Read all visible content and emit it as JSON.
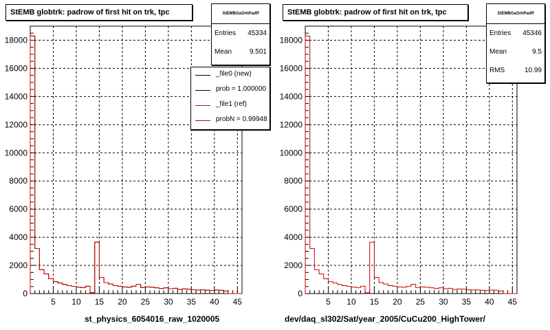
{
  "chart_data": [
    {
      "type": "bar",
      "title": "StEMB globtrk: padrow of first hit on trk, tpc",
      "xlabel": "st_physics_6054016_raw_1020005",
      "ylabel": "",
      "xlim": [
        0,
        46
      ],
      "ylim": [
        0,
        19000
      ],
      "x_ticks": [
        5,
        10,
        15,
        20,
        25,
        30,
        35,
        40,
        45
      ],
      "y_ticks": [
        2000,
        4000,
        6000,
        8000,
        10000,
        12000,
        14000,
        16000,
        18000
      ],
      "grid": true,
      "bins": [
        0,
        1,
        2,
        3,
        4,
        5,
        6,
        7,
        8,
        9,
        10,
        11,
        12,
        13,
        14,
        15,
        16,
        17,
        18,
        19,
        20,
        21,
        22,
        23,
        24,
        25,
        26,
        27,
        28,
        29,
        30,
        31,
        32,
        33,
        34,
        35,
        36,
        37,
        38,
        39,
        40,
        41,
        42,
        43,
        44,
        45
      ],
      "series": [
        {
          "name": "_file0 (new)",
          "color": "#000000",
          "values": [
            18300,
            3200,
            1700,
            1400,
            1050,
            850,
            750,
            650,
            560,
            510,
            460,
            420,
            520,
            60,
            3650,
            1150,
            780,
            680,
            560,
            520,
            470,
            450,
            520,
            660,
            430,
            470,
            450,
            410,
            360,
            410,
            340,
            370,
            290,
            330,
            310,
            270,
            250,
            260,
            230,
            220,
            250,
            230,
            180,
            0,
            0,
            0
          ]
        },
        {
          "name": "_file1 (ref)",
          "color": "#cc0000",
          "values": [
            18300,
            3200,
            1700,
            1400,
            1050,
            850,
            750,
            650,
            560,
            510,
            460,
            420,
            520,
            60,
            3650,
            1150,
            780,
            680,
            560,
            520,
            470,
            450,
            520,
            660,
            430,
            470,
            450,
            410,
            360,
            410,
            340,
            370,
            290,
            330,
            310,
            270,
            250,
            260,
            230,
            220,
            250,
            230,
            180,
            0,
            0,
            0
          ]
        }
      ],
      "stats": {
        "header": "StEMBGaOrhPadff",
        "entries_label": "Entries",
        "entries": "45334",
        "mean_label": "Mean",
        "mean": "9.501"
      },
      "legend": {
        "placement": "top-right",
        "items": [
          {
            "label": "_file0 (new)",
            "color": "#000000"
          },
          {
            "label": "prob = 1.000000",
            "color": "#000000"
          },
          {
            "label": "_file1 (ref)",
            "color": "#cc0000"
          },
          {
            "label": "probN = 0.99948",
            "color": "#cc0000"
          }
        ]
      }
    },
    {
      "type": "bar",
      "title": "StEMB globtrk: padrow of first hit on trk, tpc",
      "xlabel": "dev/daq_sl302/Sat/year_2005/CuCu200_HighTower/",
      "ylabel": "",
      "xlim": [
        0,
        46
      ],
      "ylim": [
        0,
        19000
      ],
      "x_ticks": [
        5,
        10,
        15,
        20,
        25,
        30,
        35,
        40,
        45
      ],
      "y_ticks": [
        2000,
        4000,
        6000,
        8000,
        10000,
        12000,
        14000,
        16000,
        18000
      ],
      "grid": true,
      "bins": [
        0,
        1,
        2,
        3,
        4,
        5,
        6,
        7,
        8,
        9,
        10,
        11,
        12,
        13,
        14,
        15,
        16,
        17,
        18,
        19,
        20,
        21,
        22,
        23,
        24,
        25,
        26,
        27,
        28,
        29,
        30,
        31,
        32,
        33,
        34,
        35,
        36,
        37,
        38,
        39,
        40,
        41,
        42,
        43,
        44,
        45
      ],
      "series": [
        {
          "name": "",
          "color": "#cc0000",
          "values": [
            18300,
            3200,
            1700,
            1400,
            1050,
            850,
            750,
            650,
            560,
            510,
            460,
            420,
            520,
            60,
            3650,
            1150,
            780,
            680,
            560,
            520,
            470,
            450,
            520,
            660,
            430,
            470,
            450,
            410,
            360,
            410,
            340,
            370,
            290,
            330,
            310,
            270,
            250,
            260,
            230,
            220,
            250,
            230,
            180,
            0,
            0,
            0
          ]
        }
      ],
      "stats": {
        "header": "StEMBGaOrhPadff",
        "entries_label": "Entries",
        "entries": "45346",
        "mean_label": "Mean",
        "mean": "9.5",
        "rms_label": "RMS",
        "rms": "10.99"
      }
    }
  ]
}
